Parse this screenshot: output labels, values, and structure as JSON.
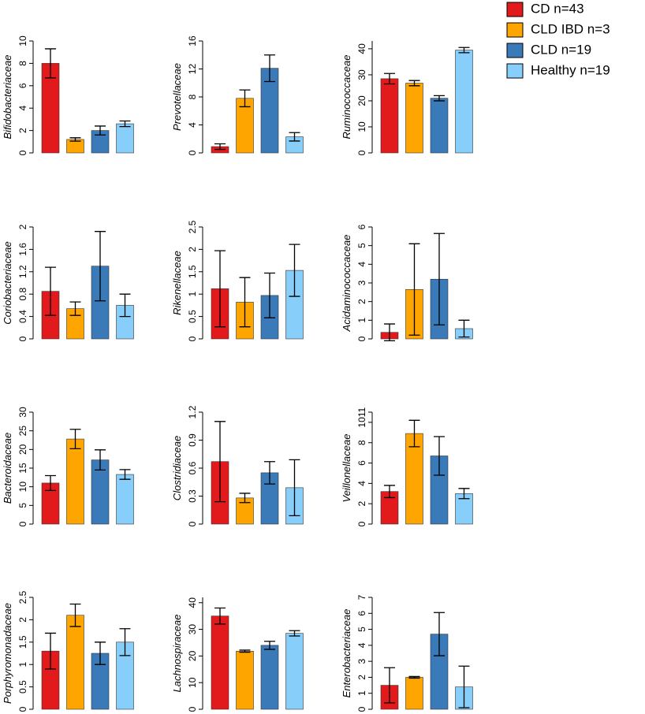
{
  "legend": {
    "entries": [
      {
        "name": "CD n=43",
        "color": "#e31a1c"
      },
      {
        "name": "CLD IBD n=3",
        "color": "#ffa500"
      },
      {
        "name": "CLD n=19",
        "color": "#3a7ab8"
      },
      {
        "name": "Healthy n=19",
        "color": "#87cefa"
      }
    ]
  },
  "chart_data": [
    {
      "type": "bar",
      "ylabel": "Bifidobacteriaceae",
      "values": [
        8,
        1.2,
        2.0,
        2.6
      ],
      "errors": [
        1.3,
        0.15,
        0.4,
        0.25
      ],
      "ylim": [
        0,
        10
      ],
      "yticks": [
        0,
        2,
        4,
        6,
        8,
        10
      ]
    },
    {
      "type": "bar",
      "ylabel": "Prevotellaceae",
      "values": [
        0.9,
        7.8,
        12.1,
        2.3
      ],
      "errors": [
        0.4,
        1.2,
        1.9,
        0.6
      ],
      "ylim": [
        0,
        16
      ],
      "yticks": [
        0,
        4,
        8,
        12,
        16
      ]
    },
    {
      "type": "bar",
      "ylabel": "Ruminococcaceae",
      "values": [
        28.5,
        26.8,
        21,
        39.5
      ],
      "errors": [
        2,
        1,
        1,
        1
      ],
      "ylim": [
        0,
        43
      ],
      "yticks": [
        0,
        10,
        20,
        30,
        40
      ]
    },
    {
      "type": "bar",
      "ylabel": "Coriobacteriaceae",
      "values": [
        0.85,
        0.54,
        1.3,
        0.6
      ],
      "errors": [
        0.43,
        0.12,
        0.62,
        0.2
      ],
      "ylim": [
        0,
        2
      ],
      "yticks": [
        0,
        0.4,
        0.8,
        1.2,
        1.6,
        2
      ]
    },
    {
      "type": "bar",
      "ylabel": "Rikenellaceae",
      "values": [
        1.12,
        0.82,
        0.97,
        1.53
      ],
      "errors": [
        0.85,
        0.55,
        0.5,
        0.58
      ],
      "ylim": [
        0,
        2.5
      ],
      "yticks": [
        0,
        0.5,
        1,
        1.5,
        2,
        2.5
      ]
    },
    {
      "type": "bar",
      "ylabel": "Acidaminococcaceae",
      "values": [
        0.35,
        2.65,
        3.2,
        0.55
      ],
      "errors": [
        0.45,
        2.45,
        2.45,
        0.45
      ],
      "ylim": [
        0,
        6
      ],
      "yticks": [
        0,
        1,
        2,
        3,
        4,
        5,
        6
      ]
    },
    {
      "type": "bar",
      "ylabel": "Bacteroidaceae",
      "values": [
        11,
        22.8,
        17.2,
        13.3
      ],
      "errors": [
        2,
        2.6,
        2.7,
        1.3
      ],
      "ylim": [
        0,
        30
      ],
      "yticks": [
        0,
        5,
        10,
        15,
        20,
        25,
        30
      ]
    },
    {
      "type": "bar",
      "ylabel": "Clostridiaceae",
      "values": [
        0.67,
        0.28,
        0.55,
        0.39
      ],
      "errors": [
        0.43,
        0.05,
        0.12,
        0.3
      ],
      "ylim": [
        0,
        1.2
      ],
      "yticks": [
        0,
        0.3,
        0.6,
        0.9,
        1.2
      ]
    },
    {
      "type": "bar",
      "ylabel": "Veillonellaceae",
      "values": [
        3.2,
        8.9,
        6.7,
        3.0
      ],
      "errors": [
        0.6,
        1.3,
        1.9,
        0.5
      ],
      "ylim": [
        0,
        11
      ],
      "yticks": [
        0,
        2,
        4,
        6,
        8,
        10,
        11
      ]
    },
    {
      "type": "bar",
      "ylabel": "Porphyromonadaceae",
      "values": [
        1.3,
        2.1,
        1.25,
        1.5
      ],
      "errors": [
        0.4,
        0.25,
        0.25,
        0.3
      ],
      "ylim": [
        0,
        2.5
      ],
      "yticks": [
        0,
        0.5,
        1,
        1.5,
        2,
        2.5
      ]
    },
    {
      "type": "bar",
      "ylabel": "Lachnospiraceae",
      "values": [
        35,
        21.8,
        24,
        28.5
      ],
      "errors": [
        3,
        0.4,
        1.5,
        1
      ],
      "ylim": [
        0,
        42
      ],
      "yticks": [
        0,
        10,
        20,
        30,
        40
      ]
    },
    {
      "type": "bar",
      "ylabel": "Enterobacteriaceae",
      "values": [
        1.5,
        2.0,
        4.7,
        1.4
      ],
      "errors": [
        1.1,
        0.05,
        1.35,
        1.3
      ],
      "ylim": [
        0,
        7
      ],
      "yticks": [
        0,
        1,
        2,
        3,
        4,
        5,
        6,
        7
      ]
    }
  ]
}
